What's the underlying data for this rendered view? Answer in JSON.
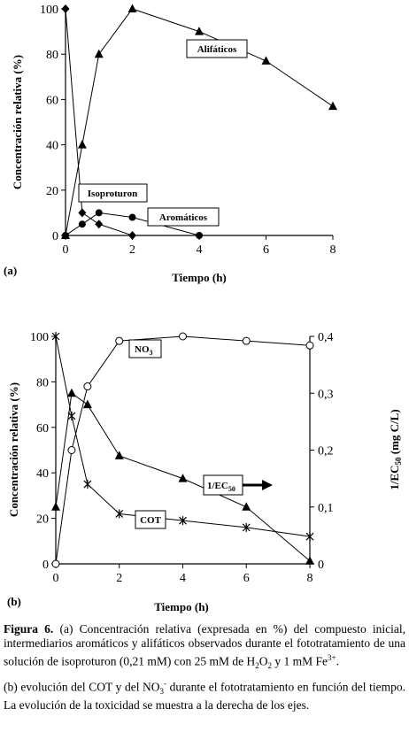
{
  "chart_data": [
    {
      "type": "line",
      "panel_label": "(a)",
      "xlabel": "Tiempo (h)",
      "ylabel": "Concentración relativa (%)",
      "xlim": [
        0,
        8
      ],
      "ylim": [
        0,
        100
      ],
      "xticks": [
        "0",
        "2",
        "4",
        "6",
        "8"
      ],
      "yticks": [
        "0",
        "20",
        "40",
        "60",
        "80",
        "100"
      ],
      "series": [
        {
          "name": "Isoproturon",
          "marker": "diamond",
          "x": [
            0,
            0.5,
            1,
            2
          ],
          "y": [
            100,
            10,
            5,
            0
          ]
        },
        {
          "name": "Aromáticos",
          "marker": "circle-filled",
          "x": [
            0,
            0.5,
            1,
            2,
            4
          ],
          "y": [
            0,
            5,
            10,
            8,
            0
          ]
        },
        {
          "name": "Alifáticos",
          "marker": "triangle",
          "x": [
            0,
            0.5,
            1,
            2,
            4,
            6,
            8
          ],
          "y": [
            0,
            40,
            80,
            100,
            90,
            77,
            57
          ]
        }
      ]
    },
    {
      "type": "line",
      "panel_label": "(b)",
      "xlabel": "Tiempo (h)",
      "ylabel": "Concentración relativa (%)",
      "y2label": "1/EC50 (mg C/L)",
      "xlim": [
        0,
        8
      ],
      "ylim": [
        0,
        100
      ],
      "y2lim": [
        0,
        0.4
      ],
      "xticks": [
        "0",
        "2",
        "4",
        "6",
        "8"
      ],
      "yticks": [
        "0",
        "20",
        "40",
        "60",
        "80",
        "100"
      ],
      "y2ticks": [
        "0",
        "0,1",
        "0,2",
        "0,3",
        "0,4"
      ],
      "series": [
        {
          "name": "NO3",
          "marker": "circle-open",
          "x": [
            0,
            0.5,
            1,
            2,
            4,
            6,
            8
          ],
          "y": [
            0,
            50,
            78,
            98,
            100,
            98,
            96
          ]
        },
        {
          "name": "COT",
          "marker": "star",
          "x": [
            0,
            0.5,
            1,
            2,
            4,
            6,
            8
          ],
          "y": [
            100,
            65,
            35,
            22,
            19,
            16,
            12
          ]
        },
        {
          "name": "1/EC50",
          "marker": "triangle",
          "axis": "right",
          "x": [
            0,
            0.5,
            1,
            2,
            4,
            6,
            8
          ],
          "y": [
            0.1,
            0.3,
            0.28,
            0.19,
            0.15,
            0.1,
            0.005
          ]
        }
      ]
    }
  ],
  "caption": {
    "label": "Figura 6.",
    "text_a": "(a) Concentración relativa (expresada en %) del compuesto inicial, intermediarios aromáticos y alifáticos observados durante el fototratamiento de una solución de isoproturon (0,21 mM) con 25 mM de H2O2 y 1 mM Fe3+.",
    "text_b": "(b) evolución del COT y del NO3- durante el fototratamiento en función del tiempo. La evolución de la toxicidad se muestra a la derecha de los ejes."
  }
}
